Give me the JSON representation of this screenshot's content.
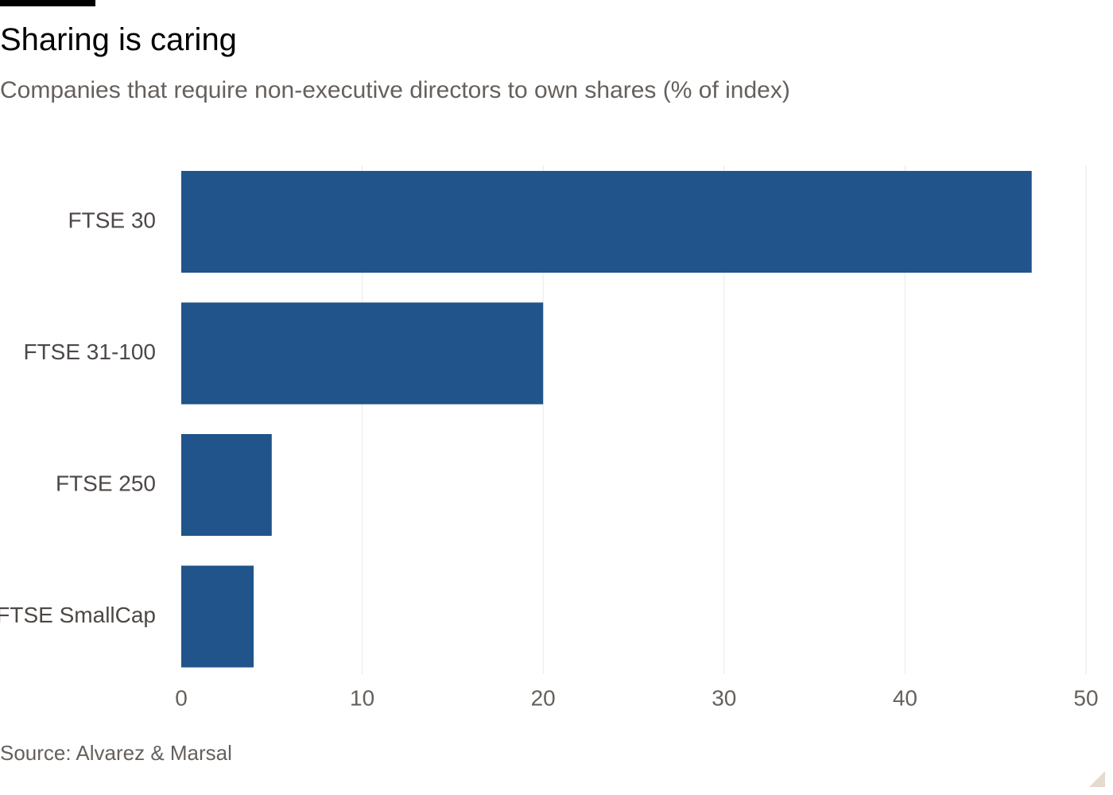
{
  "header": {
    "title": "Sharing is caring",
    "subtitle": "Companies that require non-executive directors to own shares (% of index)"
  },
  "footer": {
    "source": "Source: Alvarez & Marsal"
  },
  "colors": {
    "bar": "#20548b",
    "grid": "#ebe8e6",
    "tick_text": "#66605c",
    "category_text": "#4d4845"
  },
  "chart_data": {
    "type": "bar",
    "orientation": "horizontal",
    "title": "Sharing is caring",
    "subtitle": "Companies that require non-executive directors to own shares (% of index)",
    "categories": [
      "FTSE 30",
      "FTSE 31-100",
      "FTSE 250",
      "FTSE SmallCap"
    ],
    "values": [
      47,
      20,
      5,
      4
    ],
    "xlim": [
      0,
      50
    ],
    "xticks": [
      0,
      10,
      20,
      30,
      40,
      50
    ],
    "xlabel": "",
    "ylabel": "",
    "grid": true,
    "legend": "none",
    "source": "Source: Alvarez & Marsal"
  }
}
